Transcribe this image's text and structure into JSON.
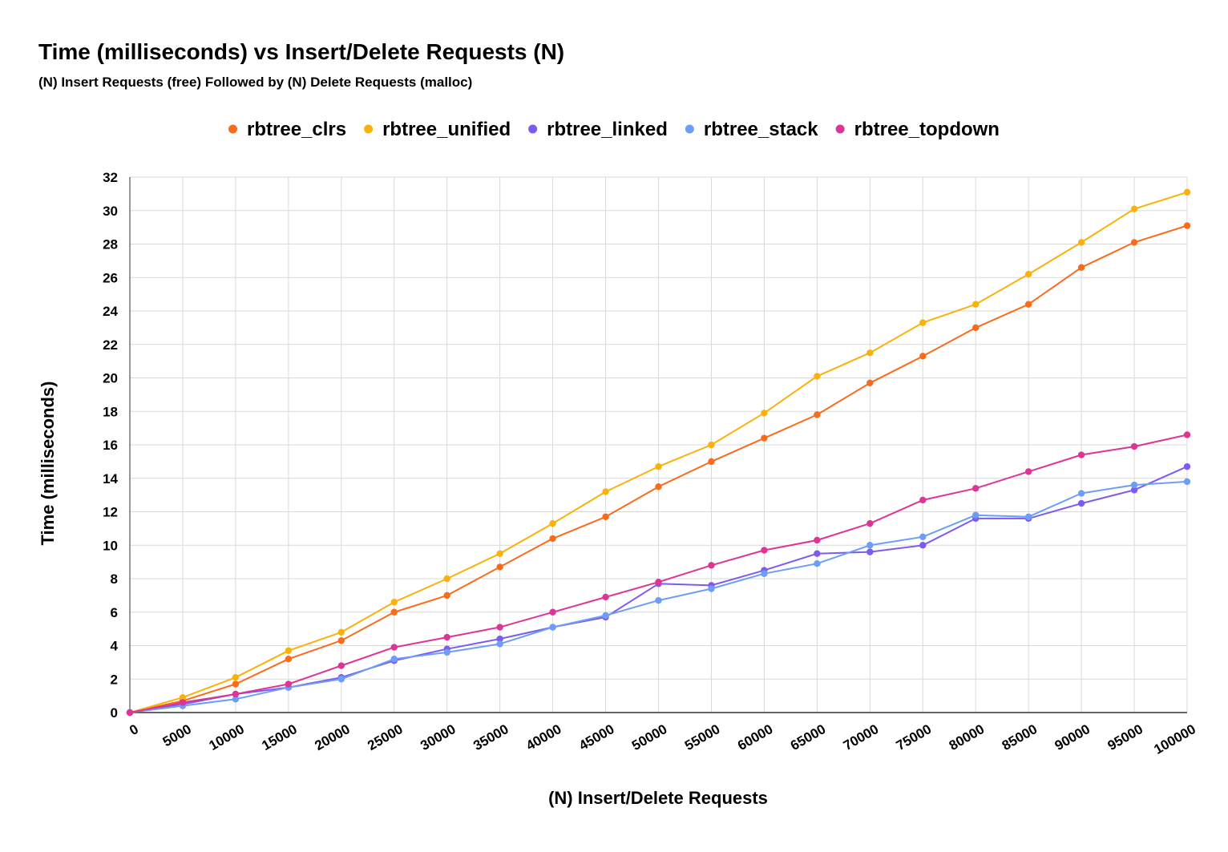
{
  "chart_data": {
    "type": "line",
    "title": "Time (milliseconds) vs Insert/Delete Requests (N)",
    "subtitle": "(N) Insert Requests (free) Followed by (N) Delete Requests (malloc)",
    "xlabel": "(N) Insert/Delete Requests",
    "ylabel": "Time (milliseconds)",
    "legend_position": "top",
    "grid": true,
    "ylim": [
      0,
      32
    ],
    "yticks": [
      0,
      2,
      4,
      6,
      8,
      10,
      12,
      14,
      16,
      18,
      20,
      22,
      24,
      26,
      28,
      30,
      32
    ],
    "x": [
      0,
      5000,
      10000,
      15000,
      20000,
      25000,
      30000,
      35000,
      40000,
      45000,
      50000,
      55000,
      60000,
      65000,
      70000,
      75000,
      80000,
      85000,
      90000,
      95000,
      100000
    ],
    "series": [
      {
        "name": "rbtree_clrs",
        "color": "#fa6b1c",
        "values": [
          0,
          0.7,
          1.7,
          3.2,
          4.3,
          6.0,
          7.0,
          8.7,
          10.4,
          11.7,
          13.5,
          15.0,
          16.4,
          17.8,
          19.7,
          21.3,
          23.0,
          24.4,
          26.6,
          28.1,
          29.1
        ]
      },
      {
        "name": "rbtree_unified",
        "color": "#fab20a",
        "values": [
          0,
          0.9,
          2.1,
          3.7,
          4.8,
          6.6,
          8.0,
          9.5,
          11.3,
          13.2,
          14.7,
          16.0,
          17.9,
          20.1,
          21.5,
          23.3,
          24.4,
          26.2,
          28.1,
          30.1,
          31.1
        ]
      },
      {
        "name": "rbtree_linked",
        "color": "#7e5bef",
        "values": [
          0,
          0.5,
          1.1,
          1.5,
          2.1,
          3.1,
          3.8,
          4.4,
          5.1,
          5.7,
          7.7,
          7.6,
          8.5,
          9.5,
          9.6,
          10.0,
          11.6,
          11.6,
          12.5,
          13.3,
          14.7
        ]
      },
      {
        "name": "rbtree_stack",
        "color": "#6c9ef8",
        "values": [
          0,
          0.4,
          0.8,
          1.5,
          2.0,
          3.2,
          3.6,
          4.1,
          5.1,
          5.8,
          6.7,
          7.4,
          8.3,
          8.9,
          10.0,
          10.5,
          11.8,
          11.7,
          13.1,
          13.6,
          13.8
        ]
      },
      {
        "name": "rbtree_topdown",
        "color": "#dd3596",
        "values": [
          0,
          0.6,
          1.1,
          1.7,
          2.8,
          3.9,
          4.5,
          5.1,
          6.0,
          6.9,
          7.8,
          8.8,
          9.7,
          10.3,
          11.3,
          12.7,
          13.4,
          14.4,
          15.4,
          15.9,
          16.6
        ]
      }
    ]
  }
}
